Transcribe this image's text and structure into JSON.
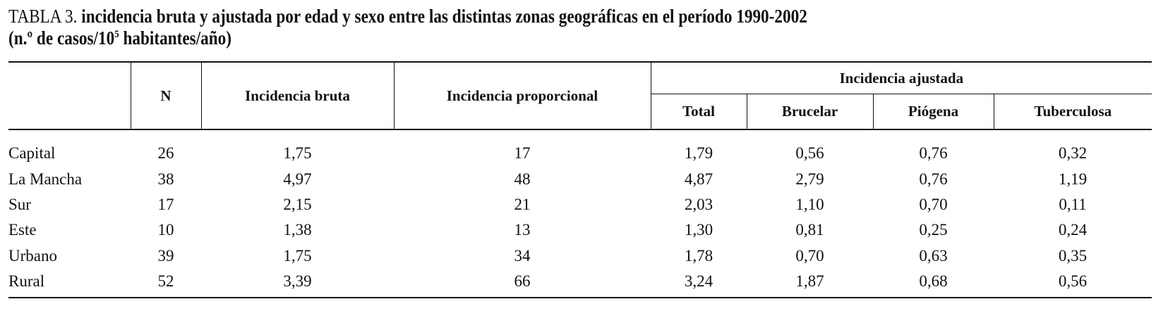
{
  "header": {
    "label": "TABLA 3.",
    "title": "incidencia bruta y ajustada por edad y sexo entre las distintas zonas geográficas en el período 1990-2002",
    "subtitle": [
      "(n.º de casos/10",
      "5",
      " habitantes/año)"
    ]
  },
  "table": {
    "columns": [
      "N",
      "Incidencia bruta",
      "Incidencia proporcional"
    ],
    "group": "Incidencia ajustada",
    "subcolumns": [
      "Total",
      "Brucelar",
      "Piógena",
      "Tuberculosa"
    ],
    "rows": [
      [
        "Capital",
        "26",
        "1,75",
        "17",
        "1,79",
        "0,56",
        "0,76",
        "0,32"
      ],
      [
        "La Mancha",
        "38",
        "4,97",
        "48",
        "4,87",
        "2,79",
        "0,76",
        "1,19"
      ],
      [
        "Sur",
        "17",
        "2,15",
        "21",
        "2,03",
        "1,10",
        "0,70",
        "0,11"
      ],
      [
        "Este",
        "10",
        "1,38",
        "13",
        "1,30",
        "0,81",
        "0,25",
        "0,24"
      ],
      [
        "Urbano",
        "39",
        "1,75",
        "34",
        "1,78",
        "0,70",
        "0,63",
        "0,35"
      ],
      [
        "Rural",
        "52",
        "3,39",
        "66",
        "3,24",
        "1,87",
        "0,68",
        "0,56"
      ]
    ]
  }
}
